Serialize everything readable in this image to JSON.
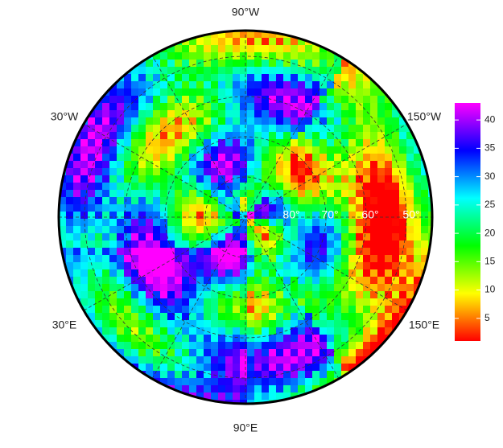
{
  "map": {
    "longitude_labels": [
      "90°W",
      "150°W",
      "30°W",
      "30°E",
      "150°E",
      "90°E"
    ],
    "latitude_labels": [
      "80°",
      "70°",
      "60°",
      "50°"
    ],
    "colorbar": {
      "lim": [
        1,
        43
      ],
      "ticks": [
        5,
        10,
        15,
        20,
        25,
        30,
        35,
        40
      ]
    }
  }
}
